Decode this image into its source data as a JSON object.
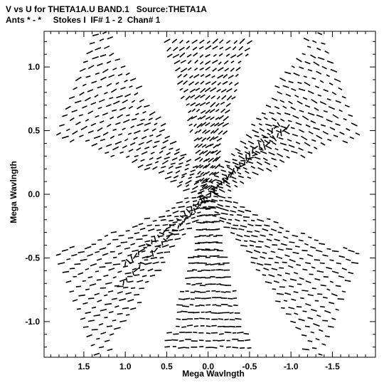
{
  "chart_data": {
    "type": "scatter",
    "title_line1": "V vs U for THETA1A.U BAND.1   Source:THETA1A",
    "title_line2": "Ants * - *     Stokes I  IF# 1 - 2  Chan# 1",
    "xlabel": "Mega Wavlngth",
    "ylabel": "Mega Wavlngth",
    "xlim": [
      1.98,
      -2.02
    ],
    "ylim": [
      -1.28,
      1.28
    ],
    "x_inverted": true,
    "x_ticks": [
      1.5,
      1.0,
      0.5,
      0.0,
      -0.5,
      -1.0,
      -1.5
    ],
    "x_tick_labels": [
      "1.5",
      "1.0",
      "0.5",
      "0.0",
      "-0.5",
      "-1.0",
      "-1.5"
    ],
    "y_ticks": [
      1.0,
      0.5,
      0.0,
      -0.5,
      -1.0
    ],
    "y_tick_labels": [
      "1.0",
      "0.5",
      "0.0",
      "-0.5",
      "-1.0"
    ],
    "grid": false,
    "legend": "none",
    "color": "#000000",
    "pattern": {
      "description_arms": 6,
      "arms": [
        {
          "name": "",
          "angle_deg": 90,
          "length": 1.2
        },
        {
          "name": "",
          "angle_deg": 150,
          "length": 1.8
        },
        {
          "name": "",
          "angle_deg": 30,
          "length": 1.8
        },
        {
          "name": "",
          "angle_deg": 270,
          "length": 1.2
        },
        {
          "name": "",
          "angle_deg": 210,
          "length": 1.8
        },
        {
          "name": "",
          "angle_deg": 330,
          "length": 1.8
        }
      ]
    }
  }
}
